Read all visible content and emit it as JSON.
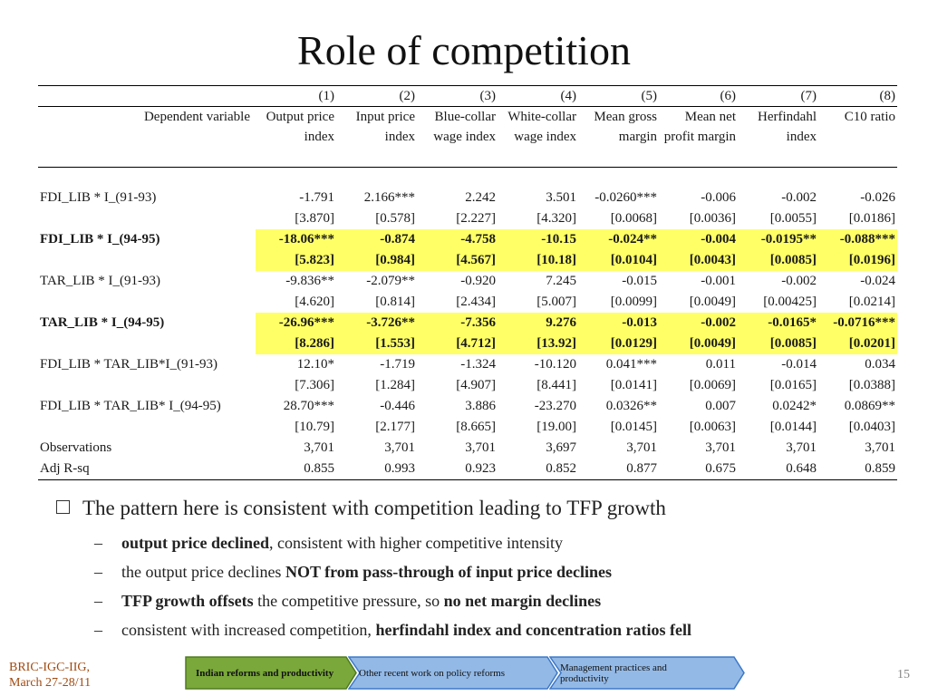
{
  "slide": {
    "title": "Role of competition",
    "page_number": "15",
    "footer_left": [
      "BRIC-IGC-IIG,",
      "March 27-28/11"
    ]
  },
  "table": {
    "col_numbers": [
      "(1)",
      "(2)",
      "(3)",
      "(4)",
      "(5)",
      "(6)",
      "(7)",
      "(8)"
    ],
    "dependent_label": "Dependent variable",
    "col_headers": [
      "Output price index",
      "Input price index",
      "Blue-collar wage index",
      "White-collar wage index",
      "Mean gross margin",
      "Mean net profit margin",
      "Herfindahl index",
      "C10 ratio"
    ],
    "rows": [
      {
        "label": "FDI_LIB * I_(91-93)",
        "bold": false,
        "highlight": false,
        "coef": [
          "-1.791",
          "2.166***",
          "2.242",
          "3.501",
          "-0.0260***",
          "-0.006",
          "-0.002",
          "-0.026"
        ],
        "se": [
          "[3.870]",
          "[0.578]",
          "[2.227]",
          "[4.320]",
          "[0.0068]",
          "[0.0036]",
          "[0.0055]",
          "[0.0186]"
        ]
      },
      {
        "label": "FDI_LIB * I_(94-95)",
        "bold": true,
        "highlight": true,
        "coef": [
          "-18.06***",
          "-0.874",
          "-4.758",
          "-10.15",
          "-0.024**",
          "-0.004",
          "-0.0195**",
          "-0.088***"
        ],
        "se": [
          "[5.823]",
          "[0.984]",
          "[4.567]",
          "[10.18]",
          "[0.0104]",
          "[0.0043]",
          "[0.0085]",
          "[0.0196]"
        ]
      },
      {
        "label": "TAR_LIB * I_(91-93)",
        "bold": false,
        "highlight": false,
        "coef": [
          "-9.836**",
          "-2.079**",
          "-0.920",
          "7.245",
          "-0.015",
          "-0.001",
          "-0.002",
          "-0.024"
        ],
        "se": [
          "[4.620]",
          "[0.814]",
          "[2.434]",
          "[5.007]",
          "[0.0099]",
          "[0.0049]",
          "[0.00425]",
          "[0.0214]"
        ]
      },
      {
        "label": "TAR_LIB * I_(94-95)",
        "bold": true,
        "highlight": true,
        "coef": [
          "-26.96***",
          "-3.726**",
          "-7.356",
          "9.276",
          "-0.013",
          "-0.002",
          "-0.0165*",
          "-0.0716***"
        ],
        "se": [
          "[8.286]",
          "[1.553]",
          "[4.712]",
          "[13.92]",
          "[0.0129]",
          "[0.0049]",
          "[0.0085]",
          "[0.0201]"
        ]
      },
      {
        "label": "FDI_LIB * TAR_LIB*I_(91-93)",
        "bold": false,
        "highlight": false,
        "coef": [
          "12.10*",
          "-1.719",
          "-1.324",
          "-10.120",
          "0.041***",
          "0.011",
          "-0.014",
          "0.034"
        ],
        "se": [
          "[7.306]",
          "[1.284]",
          "[4.907]",
          "[8.441]",
          "[0.0141]",
          "[0.0069]",
          "[0.0165]",
          "[0.0388]"
        ]
      },
      {
        "label": "FDI_LIB * TAR_LIB* I_(94-95)",
        "bold": false,
        "highlight": false,
        "coef": [
          "28.70***",
          "-0.446",
          "3.886",
          "-23.270",
          "0.0326**",
          "0.007",
          "0.0242*",
          "0.0869**"
        ],
        "se": [
          "[10.79]",
          "[2.177]",
          "[8.665]",
          "[19.00]",
          "[0.0145]",
          "[0.0063]",
          "[0.0144]",
          "[0.0403]"
        ]
      }
    ],
    "observations": {
      "label": "Observations",
      "values": [
        "3,701",
        "3,701",
        "3,701",
        "3,697",
        "3,701",
        "3,701",
        "3,701",
        "3,701"
      ]
    },
    "adj_rsq": {
      "label": "Adj R-sq",
      "values": [
        "0.855",
        "0.993",
        "0.923",
        "0.852",
        "0.877",
        "0.675",
        "0.648",
        "0.859"
      ]
    },
    "highlight_color": "#ffff66"
  },
  "bullets": {
    "main": "The pattern here is consistent with competition leading to TFP growth",
    "sub": [
      [
        {
          "t": "output price declined",
          "b": true
        },
        {
          "t": ", consistent with higher competitive intensity",
          "b": false
        }
      ],
      [
        {
          "t": "the output price declines ",
          "b": false
        },
        {
          "t": "NOT from pass-through of input price declines",
          "b": true
        }
      ],
      [
        {
          "t": "TFP growth offsets",
          "b": true
        },
        {
          "t": " the competitive pressure, so ",
          "b": false
        },
        {
          "t": "no net margin declines",
          "b": true
        }
      ],
      [
        {
          "t": "consistent with increased competition, ",
          "b": false
        },
        {
          "t": "herfindahl index and concentration ratios fell",
          "b": true
        }
      ]
    ]
  },
  "nav": {
    "items": [
      {
        "label": "Indian reforms and productivity",
        "active": true
      },
      {
        "label": "Other recent work on policy reforms",
        "active": false
      },
      {
        "label": "Management practices and productivity",
        "active": false
      }
    ],
    "colors": {
      "active_fill": "#7aa83a",
      "active_border": "#4f7a1f",
      "inactive_fill": "#93b9e6",
      "inactive_border": "#3c78c8"
    }
  }
}
